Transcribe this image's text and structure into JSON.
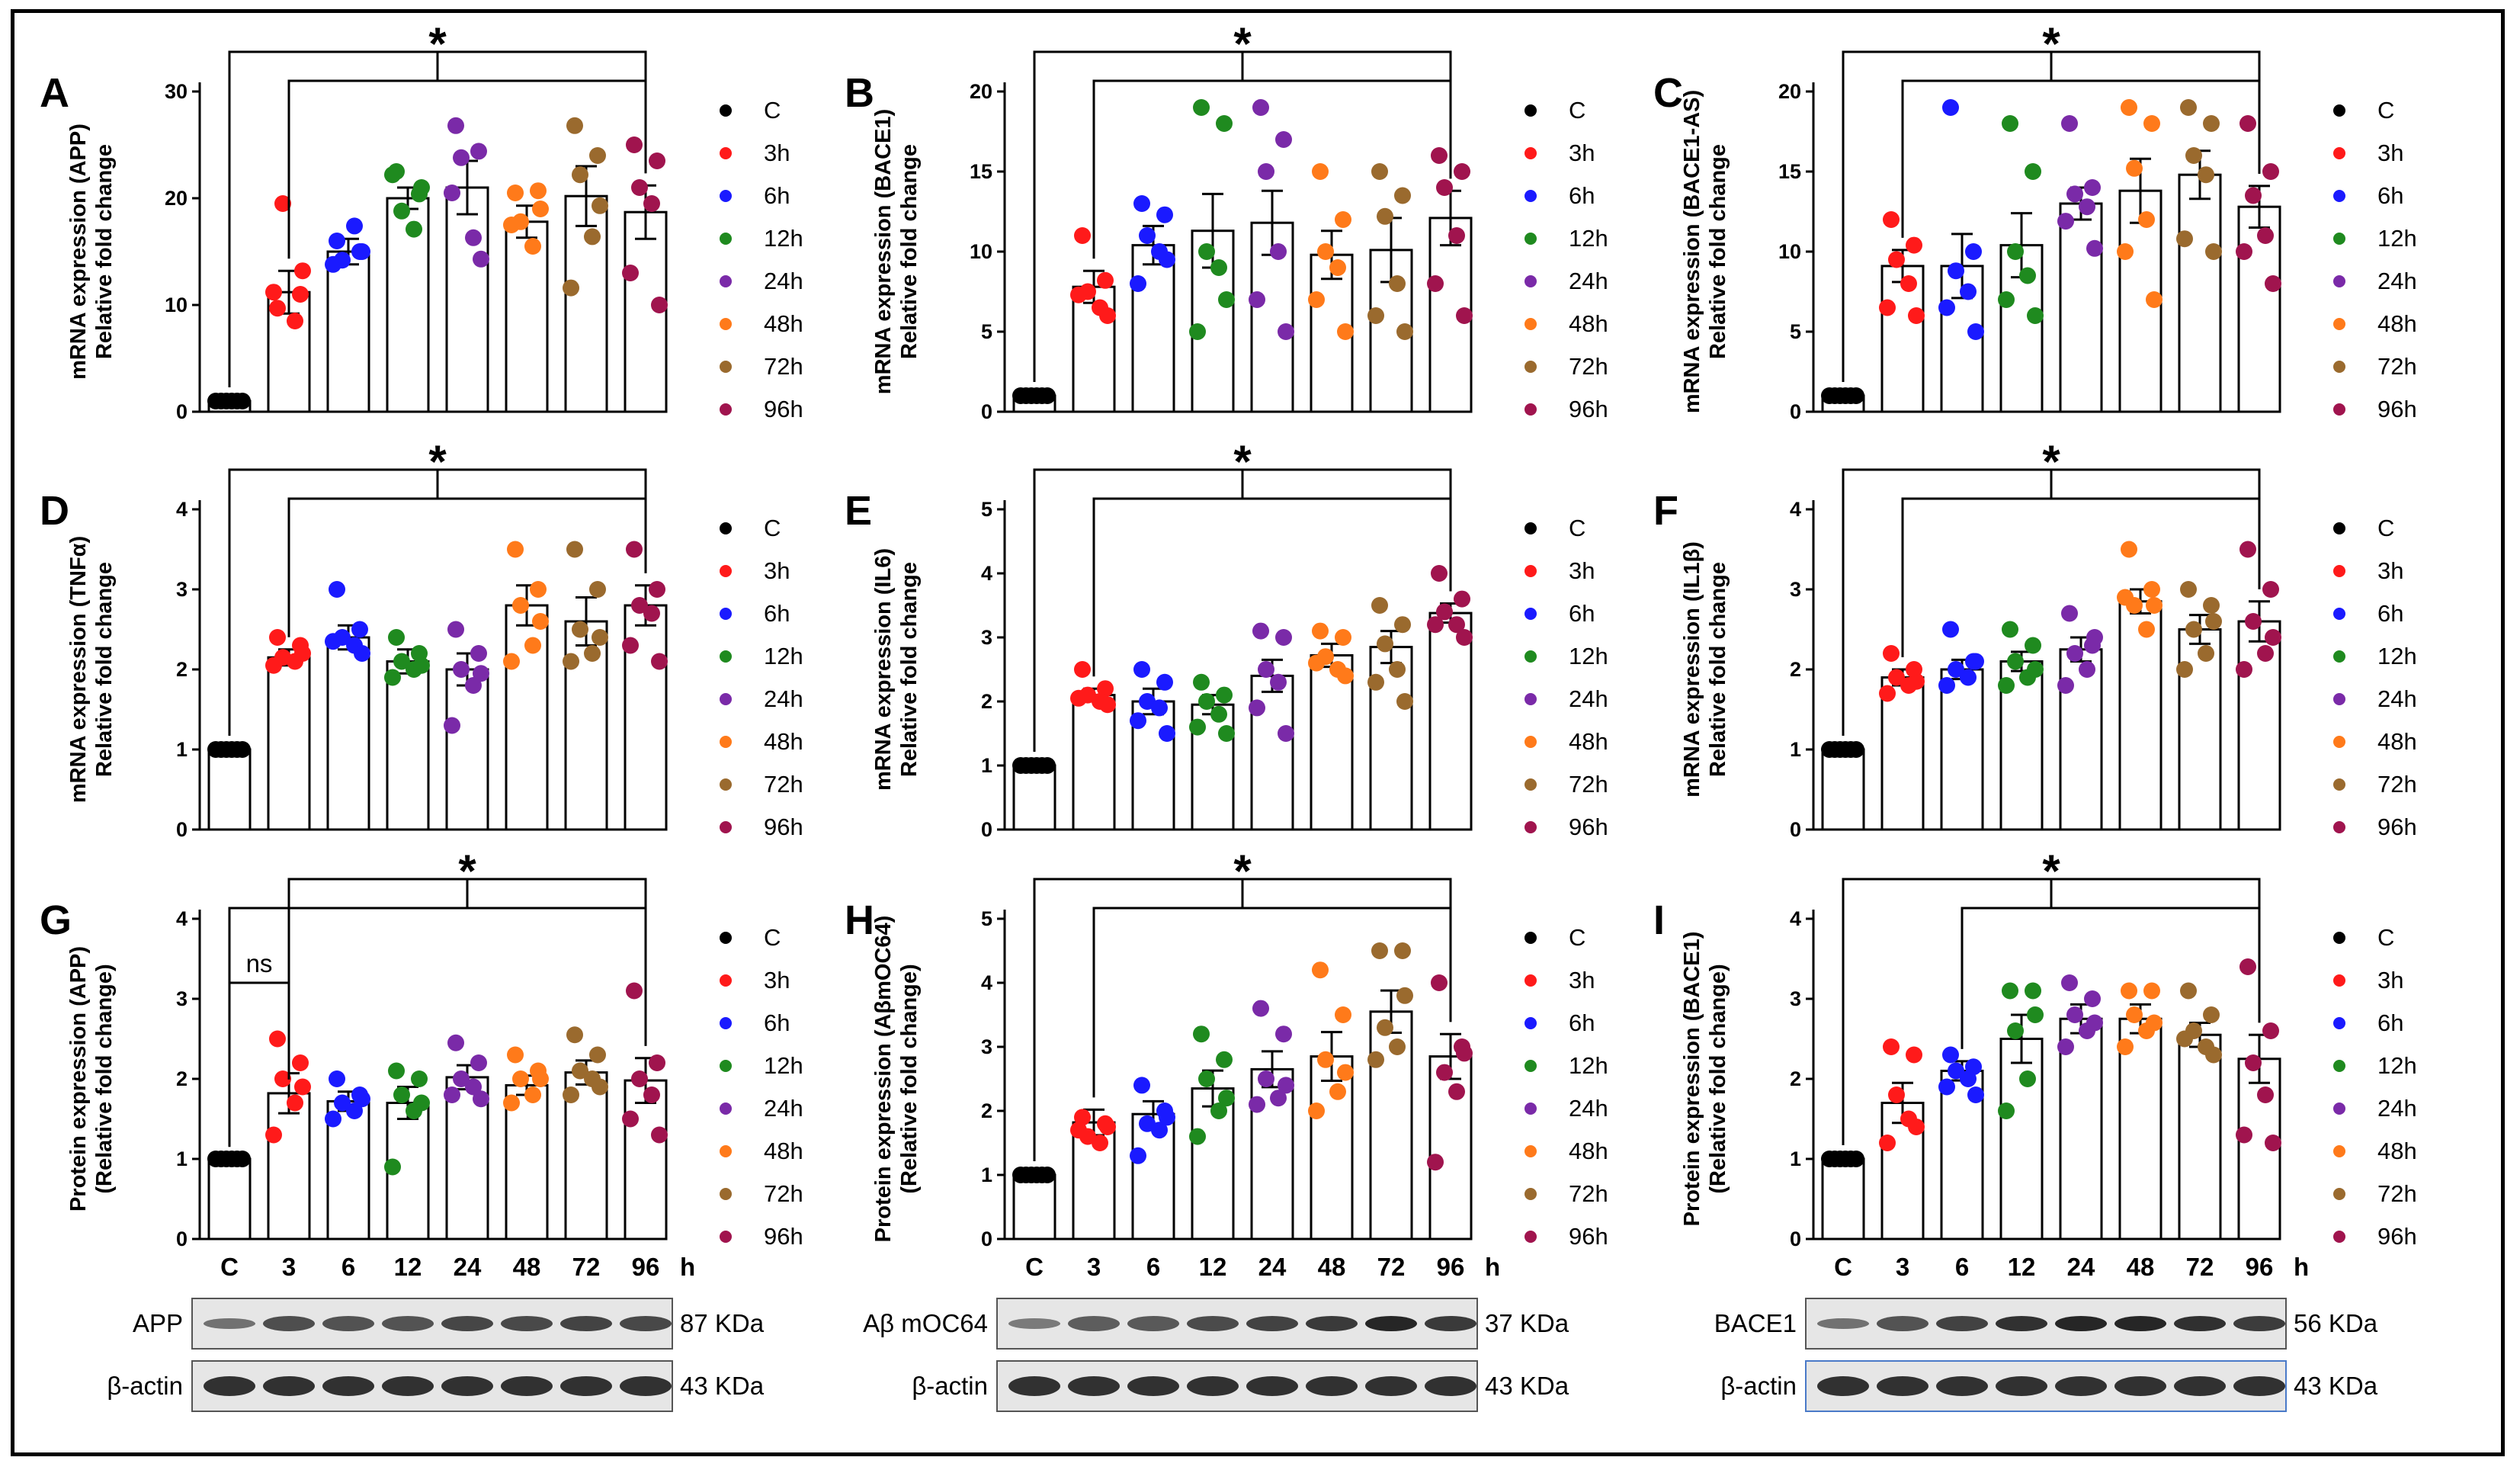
{
  "figure": {
    "legend_labels": [
      "C",
      "3h",
      "6h",
      "12h",
      "24h",
      "48h",
      "72h",
      "96h"
    ],
    "group_colors": [
      "#000000",
      "#ff1a1a",
      "#1a1aff",
      "#1f8a1f",
      "#7a2aa8",
      "#ff7a1a",
      "#9a6a2e",
      "#a0144e"
    ],
    "x_ticks": [
      "C",
      "3",
      "6",
      "12",
      "24",
      "48",
      "72",
      "96"
    ],
    "x_unit": "h",
    "significance_star": "*",
    "ns_label": "ns"
  },
  "chart_data": [
    {
      "type": "bar",
      "panel": "A",
      "ylabel": [
        "mRNA expression (APP)",
        "Relative fold change"
      ],
      "ylim": [
        0,
        30
      ],
      "yticks": [
        0,
        10,
        20,
        30
      ],
      "categories": [
        "C",
        "3h",
        "6h",
        "12h",
        "24h",
        "48h",
        "72h",
        "96h"
      ],
      "values": [
        1,
        11.2,
        15,
        20,
        21,
        17.8,
        20.2,
        18.7
      ],
      "errors": [
        0.2,
        2,
        1.2,
        1,
        2.5,
        1.5,
        2.8,
        2.5
      ],
      "points": [
        [
          1,
          1,
          1,
          1,
          1,
          1
        ],
        [
          9.7,
          11,
          19.5,
          8.5,
          11.2,
          13.2
        ],
        [
          16,
          15,
          14.2,
          17.4,
          13.8,
          15
        ],
        [
          22.5,
          20.4,
          18.8,
          17.1,
          22.2,
          21
        ],
        [
          26.8,
          24.4,
          23.8,
          16.3,
          20.5,
          14.3
        ],
        [
          20.5,
          20.7,
          17.8,
          15.5,
          17.5,
          19
        ],
        [
          26.8,
          24,
          22.2,
          16.4,
          11.6,
          19.3
        ],
        [
          25,
          23.5,
          21,
          19.5,
          13,
          10
        ]
      ],
      "brackets": [
        {
          "from": 0,
          "to": 7,
          "level": 0
        },
        {
          "from": 1,
          "to": 7,
          "level": 1
        }
      ],
      "star_on": 0
    },
    {
      "type": "bar",
      "panel": "B",
      "ylabel": [
        "mRNA expression (BACE1)",
        "Relative fold change"
      ],
      "ylim": [
        0,
        20
      ],
      "yticks": [
        0,
        5,
        10,
        15,
        20
      ],
      "categories": [
        "C",
        "3h",
        "6h",
        "12h",
        "24h",
        "48h",
        "72h",
        "96h"
      ],
      "values": [
        1,
        7.8,
        10.4,
        11.3,
        11.8,
        9.8,
        10.1,
        12.1
      ],
      "errors": [
        0.2,
        1,
        1.2,
        2.3,
        2,
        1.5,
        2,
        1.7
      ],
      "points": [
        [
          1,
          1,
          1,
          1,
          1,
          1
        ],
        [
          11,
          8.2,
          7.5,
          6.5,
          7.3,
          6
        ],
        [
          13,
          12.3,
          11,
          10,
          8,
          9.5
        ],
        [
          19,
          18,
          10,
          9,
          5,
          7
        ],
        [
          19,
          17,
          15,
          10,
          7,
          5
        ],
        [
          15,
          12,
          10,
          9,
          7,
          5
        ],
        [
          15,
          13.5,
          12.2,
          8,
          6,
          5
        ],
        [
          16,
          15,
          14,
          11,
          8,
          6
        ]
      ],
      "brackets": [
        {
          "from": 0,
          "to": 7,
          "level": 0
        },
        {
          "from": 1,
          "to": 7,
          "level": 1
        }
      ],
      "star_on": 0
    },
    {
      "type": "bar",
      "panel": "C",
      "ylabel": [
        "mRNA expression (BACE1-AS)",
        "Relative fold change"
      ],
      "ylim": [
        0,
        20
      ],
      "yticks": [
        0,
        5,
        10,
        15,
        20
      ],
      "categories": [
        "C",
        "3h",
        "6h",
        "12h",
        "24h",
        "48h",
        "72h",
        "96h"
      ],
      "values": [
        1,
        9.1,
        9.1,
        10.4,
        13,
        13.8,
        14.8,
        12.8
      ],
      "errors": [
        0.2,
        1,
        2,
        2,
        1,
        2,
        1.5,
        1.3
      ],
      "points": [
        [
          1,
          1,
          1,
          1,
          1,
          1
        ],
        [
          12,
          10.4,
          9.5,
          8,
          6.5,
          6
        ],
        [
          19,
          10,
          8.8,
          7.5,
          6.5,
          5
        ],
        [
          18,
          15,
          10,
          8.5,
          7,
          6
        ],
        [
          18,
          14,
          13.6,
          12.8,
          11.9,
          10.2
        ],
        [
          19,
          18,
          15.2,
          12,
          10,
          7
        ],
        [
          19,
          18,
          16,
          14.8,
          10.8,
          10
        ],
        [
          18,
          15,
          13.5,
          11,
          10,
          8
        ]
      ],
      "brackets": [
        {
          "from": 0,
          "to": 7,
          "level": 0
        },
        {
          "from": 1,
          "to": 7,
          "level": 1
        }
      ],
      "star_on": 0
    },
    {
      "type": "bar",
      "panel": "D",
      "ylabel": [
        "mRNA expression (TNFα)",
        "Relative fold change"
      ],
      "ylim": [
        0,
        4
      ],
      "yticks": [
        0,
        1,
        2,
        3,
        4
      ],
      "categories": [
        "C",
        "3h",
        "6h",
        "12h",
        "24h",
        "48h",
        "72h",
        "96h"
      ],
      "values": [
        1,
        2.15,
        2.4,
        2.1,
        2,
        2.8,
        2.6,
        2.8
      ],
      "errors": [
        0.02,
        0.1,
        0.15,
        0.15,
        0.2,
        0.25,
        0.3,
        0.25
      ],
      "points": [
        [
          1,
          1,
          1,
          1,
          1,
          1
        ],
        [
          2.4,
          2.3,
          2.15,
          2.1,
          2.05,
          2.2
        ],
        [
          3,
          2.5,
          2.4,
          2.3,
          2.35,
          2.2
        ],
        [
          2.4,
          2.2,
          2.1,
          2,
          1.9,
          2.05
        ],
        [
          2.5,
          2.2,
          2,
          1.8,
          1.3,
          1.95
        ],
        [
          3.5,
          3,
          2.8,
          2.3,
          2.1,
          2.6
        ],
        [
          3.5,
          3,
          2.5,
          2.2,
          2.1,
          2.4
        ],
        [
          3.5,
          3,
          2.8,
          2.7,
          2.3,
          2.1
        ]
      ],
      "brackets": [
        {
          "from": 0,
          "to": 7,
          "level": 0
        },
        {
          "from": 1,
          "to": 7,
          "level": 1
        }
      ],
      "star_on": 0
    },
    {
      "type": "bar",
      "panel": "E",
      "ylabel": [
        "mRNA expression (IL6)",
        "Relative fold change"
      ],
      "ylim": [
        0,
        5
      ],
      "yticks": [
        0,
        1,
        2,
        3,
        4,
        5
      ],
      "categories": [
        "C",
        "3h",
        "6h",
        "12h",
        "24h",
        "48h",
        "72h",
        "96h"
      ],
      "values": [
        1,
        2.1,
        2,
        1.95,
        2.4,
        2.72,
        2.85,
        3.38
      ],
      "errors": [
        0.02,
        0.1,
        0.2,
        0.15,
        0.25,
        0.18,
        0.25,
        0.15
      ],
      "points": [
        [
          1,
          1,
          1,
          1,
          1,
          1
        ],
        [
          2.5,
          2.2,
          2.1,
          2,
          2.05,
          1.95
        ],
        [
          2.5,
          2.3,
          2,
          1.9,
          1.7,
          1.5
        ],
        [
          2.3,
          2.1,
          2,
          1.8,
          1.6,
          1.5
        ],
        [
          3.1,
          3,
          2.5,
          2.3,
          1.9,
          1.5
        ],
        [
          3.1,
          3,
          2.7,
          2.5,
          2.6,
          2.4
        ],
        [
          3.5,
          3.2,
          2.9,
          2.5,
          2.3,
          2
        ],
        [
          4,
          3.6,
          3.4,
          3.2,
          3.2,
          3
        ]
      ],
      "brackets": [
        {
          "from": 0,
          "to": 7,
          "level": 0
        },
        {
          "from": 1,
          "to": 7,
          "level": 1
        }
      ],
      "star_on": 0
    },
    {
      "type": "bar",
      "panel": "F",
      "ylabel": [
        "mRNA expression (IL1β)",
        "Relative fold change"
      ],
      "ylim": [
        0,
        4
      ],
      "yticks": [
        0,
        1,
        2,
        3,
        4
      ],
      "categories": [
        "C",
        "3h",
        "6h",
        "12h",
        "24h",
        "48h",
        "72h",
        "96h"
      ],
      "values": [
        1,
        1.9,
        2,
        2.1,
        2.25,
        2.85,
        2.5,
        2.6
      ],
      "errors": [
        0.02,
        0.1,
        0.12,
        0.12,
        0.15,
        0.15,
        0.18,
        0.25
      ],
      "points": [
        [
          1,
          1,
          1,
          1,
          1,
          1
        ],
        [
          2.2,
          2,
          1.9,
          1.8,
          1.7,
          1.85
        ],
        [
          2.5,
          2.1,
          2,
          1.9,
          1.8,
          2.1
        ],
        [
          2.5,
          2.3,
          2.1,
          1.9,
          1.8,
          2
        ],
        [
          2.7,
          2.3,
          2.2,
          2,
          1.8,
          2.4
        ],
        [
          3.5,
          3,
          2.8,
          2.5,
          2.9,
          2.8
        ],
        [
          3,
          2.8,
          2.5,
          2.2,
          2,
          2.6
        ],
        [
          3.5,
          3,
          2.6,
          2.2,
          2,
          2.4
        ]
      ],
      "brackets": [
        {
          "from": 0,
          "to": 7,
          "level": 0
        },
        {
          "from": 1,
          "to": 7,
          "level": 1
        }
      ],
      "star_on": 0
    },
    {
      "type": "bar",
      "panel": "G",
      "ylabel": [
        "Protein expression (APP)",
        "(Relative fold change)"
      ],
      "ylim": [
        0,
        4
      ],
      "yticks": [
        0,
        1,
        2,
        3,
        4
      ],
      "categories": [
        "C",
        "3h",
        "6h",
        "12h",
        "24h",
        "48h",
        "72h",
        "96h"
      ],
      "values": [
        1,
        1.82,
        1.72,
        1.7,
        2.02,
        1.92,
        2.08,
        1.98
      ],
      "errors": [
        0.02,
        0.25,
        0.12,
        0.2,
        0.15,
        0.12,
        0.15,
        0.28
      ],
      "points": [
        [
          1,
          1,
          1,
          1,
          1,
          1
        ],
        [
          2.5,
          2.2,
          2,
          1.7,
          1.3,
          1.9
        ],
        [
          2,
          1.8,
          1.7,
          1.6,
          1.5,
          1.75
        ],
        [
          2.1,
          2,
          1.8,
          1.6,
          0.9,
          1.7
        ],
        [
          2.45,
          2.2,
          2,
          1.9,
          1.8,
          1.75
        ],
        [
          2.3,
          2.1,
          2,
          1.8,
          1.7,
          2
        ],
        [
          2.55,
          2.3,
          2.1,
          2,
          1.8,
          1.9
        ],
        [
          3.1,
          2.2,
          2,
          1.8,
          1.5,
          1.3
        ]
      ],
      "brackets": [
        {
          "from": 1,
          "to": 7,
          "level": 0
        },
        {
          "from": 0,
          "to": 7,
          "level": 1
        }
      ],
      "ns_bracket": {
        "from": 0,
        "to": 1
      },
      "star_on": 0,
      "blot": {
        "rows": [
          {
            "label": "APP",
            "kda": "87 KDa"
          },
          {
            "label": "β-actin",
            "kda": "43 KDa"
          }
        ]
      }
    },
    {
      "type": "bar",
      "panel": "H",
      "ylabel": [
        "Protein expression (AβmOC64)",
        "(Relative fold change)"
      ],
      "ylim": [
        0,
        5
      ],
      "yticks": [
        0,
        1,
        2,
        3,
        4,
        5
      ],
      "categories": [
        "C",
        "3h",
        "6h",
        "12h",
        "24h",
        "48h",
        "72h",
        "96h"
      ],
      "values": [
        1,
        1.82,
        1.95,
        2.35,
        2.65,
        2.85,
        3.55,
        2.85
      ],
      "errors": [
        0.02,
        0.2,
        0.2,
        0.28,
        0.28,
        0.38,
        0.33,
        0.35
      ],
      "points": [
        [
          1,
          1,
          1,
          1,
          1,
          1
        ],
        [
          1.9,
          1.8,
          1.6,
          1.5,
          1.7,
          1.75
        ],
        [
          2.4,
          2,
          1.8,
          1.7,
          1.3,
          1.9
        ],
        [
          3.2,
          2.8,
          2.5,
          2,
          1.6,
          2.2
        ],
        [
          3.6,
          3.2,
          2.5,
          2.2,
          2.1,
          2.4
        ],
        [
          4.2,
          3.5,
          2.8,
          2.3,
          2,
          2.6
        ],
        [
          4.5,
          4.5,
          3.3,
          3,
          2.8,
          3.8
        ],
        [
          4,
          3,
          2.6,
          2.3,
          1.2,
          2.9
        ]
      ],
      "brackets": [
        {
          "from": 0,
          "to": 7,
          "level": 0
        },
        {
          "from": 1,
          "to": 7,
          "level": 1
        }
      ],
      "star_on": 0,
      "blot": {
        "rows": [
          {
            "label": "Aβ mOC64",
            "kda": "37 KDa"
          },
          {
            "label": "β-actin",
            "kda": "43 KDa"
          }
        ]
      }
    },
    {
      "type": "bar",
      "panel": "I",
      "ylabel": [
        "Protein expression (BACE1)",
        "(Relative fold change)"
      ],
      "ylim": [
        0,
        4
      ],
      "yticks": [
        0,
        1,
        2,
        3,
        4
      ],
      "categories": [
        "C",
        "3h",
        "6h",
        "12h",
        "24h",
        "48h",
        "72h",
        "96h"
      ],
      "values": [
        1,
        1.7,
        2.1,
        2.5,
        2.75,
        2.75,
        2.55,
        2.25
      ],
      "errors": [
        0.02,
        0.25,
        0.12,
        0.3,
        0.18,
        0.18,
        0.15,
        0.3
      ],
      "points": [
        [
          1,
          1,
          1,
          1,
          1,
          1
        ],
        [
          2.4,
          2.3,
          1.8,
          1.5,
          1.2,
          1.4
        ],
        [
          2.3,
          2.15,
          2.1,
          2,
          1.9,
          1.8
        ],
        [
          3.1,
          3.1,
          2.6,
          2,
          1.6,
          2.8
        ],
        [
          3.2,
          3,
          2.8,
          2.6,
          2.4,
          2.7
        ],
        [
          3.1,
          3.1,
          2.8,
          2.6,
          2.4,
          2.7
        ],
        [
          3.1,
          2.8,
          2.6,
          2.4,
          2.5,
          2.3
        ],
        [
          3.4,
          2.6,
          2.2,
          1.8,
          1.3,
          1.2
        ]
      ],
      "brackets": [
        {
          "from": 0,
          "to": 7,
          "level": 0
        },
        {
          "from": 2,
          "to": 7,
          "level": 1
        }
      ],
      "star_on": 0,
      "blot": {
        "rows": [
          {
            "label": "BACE1",
            "kda": "56 KDa"
          },
          {
            "label": "β-actin",
            "kda": "43 KDa"
          }
        ]
      }
    }
  ]
}
